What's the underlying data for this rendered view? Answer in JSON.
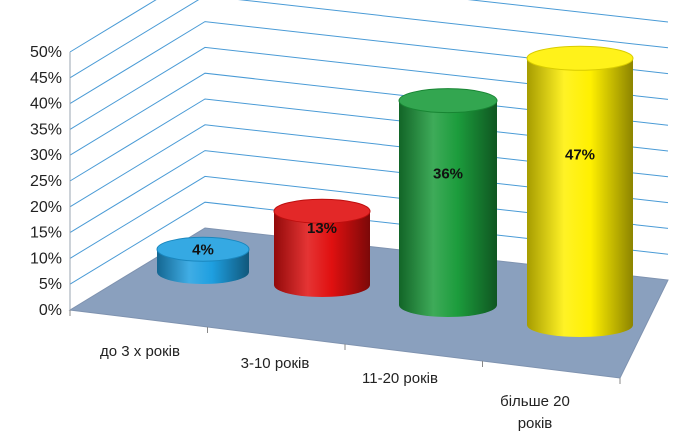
{
  "chart_data": {
    "type": "bar",
    "style": "3d-cylinder",
    "categories": [
      "до 3 х років",
      "3-10 років",
      "11-20 років",
      "більше 20 років"
    ],
    "values": [
      4,
      13,
      36,
      47
    ],
    "value_labels": [
      "4%",
      "13%",
      "36%",
      "47%"
    ],
    "colors": [
      "#1E9FE0",
      "#E01010",
      "#1C9C3C",
      "#FFF000"
    ],
    "ylim": [
      0,
      50
    ],
    "y_ticks": [
      0,
      5,
      10,
      15,
      20,
      25,
      30,
      35,
      40,
      45,
      50
    ],
    "y_tick_labels": [
      "0%",
      "5%",
      "10%",
      "15%",
      "20%",
      "25%",
      "30%",
      "35%",
      "40%",
      "45%",
      "50%"
    ],
    "grid": true,
    "legend": "none",
    "gridline_color": "#4A9BD6",
    "floor_color": "#8AA0BE"
  }
}
